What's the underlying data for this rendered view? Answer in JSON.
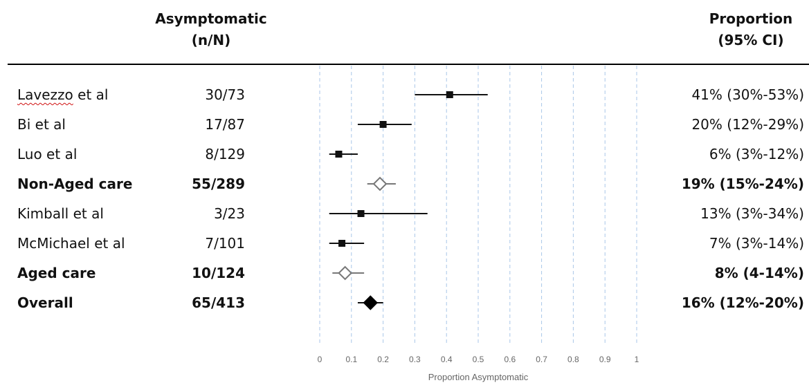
{
  "header": {
    "count_line1": "Asymptomatic",
    "count_line2": "(n/N)",
    "prop_line1": "Proportion",
    "prop_line2": "(95% CI)"
  },
  "colors": {
    "study_marker": "#111111",
    "summary_marker": "#777777",
    "overall_marker": "#000000",
    "grid": "#a9c6e8",
    "axis_text": "#666666"
  },
  "chart_data": {
    "type": "forest",
    "xlabel": "Proportion Asymptomatic",
    "xlim": [
      0,
      1
    ],
    "ticks": [
      0,
      0.1,
      0.2,
      0.3,
      0.4,
      0.5,
      0.6,
      0.7,
      0.8,
      0.9,
      1
    ],
    "tick_labels": [
      "0",
      "0.1",
      "0.2",
      "0.3",
      "0.4",
      "0.5",
      "0.6",
      "0.7",
      "0.8",
      "0.9",
      "1"
    ],
    "grid": true,
    "rows": [
      {
        "label": "Lavezzo et al",
        "count": "30/73",
        "estimate": 0.41,
        "lower": 0.3,
        "upper": 0.53,
        "text": "41% (30%-53%)",
        "kind": "study",
        "bold": false
      },
      {
        "label": "Bi et al",
        "count": "17/87",
        "estimate": 0.2,
        "lower": 0.12,
        "upper": 0.29,
        "text": "20% (12%-29%)",
        "kind": "study",
        "bold": false
      },
      {
        "label": "Luo et al",
        "count": "8/129",
        "estimate": 0.06,
        "lower": 0.03,
        "upper": 0.12,
        "text": "6% (3%-12%)",
        "kind": "study",
        "bold": false
      },
      {
        "label": "Non-Aged care",
        "count": "55/289",
        "estimate": 0.19,
        "lower": 0.15,
        "upper": 0.24,
        "text": "19% (15%-24%)",
        "kind": "subtotal",
        "bold": true
      },
      {
        "label": "Kimball et al",
        "count": "3/23",
        "estimate": 0.13,
        "lower": 0.03,
        "upper": 0.34,
        "text": "13% (3%-34%)",
        "kind": "study",
        "bold": false
      },
      {
        "label": "McMichael et al",
        "count": "7/101",
        "estimate": 0.07,
        "lower": 0.03,
        "upper": 0.14,
        "text": "7% (3%-14%)",
        "kind": "study",
        "bold": false
      },
      {
        "label": "Aged care",
        "count": "10/124",
        "estimate": 0.08,
        "lower": 0.04,
        "upper": 0.14,
        "text": "8% (4-14%)",
        "kind": "subtotal",
        "bold": true
      },
      {
        "label": "Overall",
        "count": "65/413",
        "estimate": 0.16,
        "lower": 0.12,
        "upper": 0.2,
        "text": "16% (12%-20%)",
        "kind": "overall",
        "bold": true
      }
    ]
  }
}
